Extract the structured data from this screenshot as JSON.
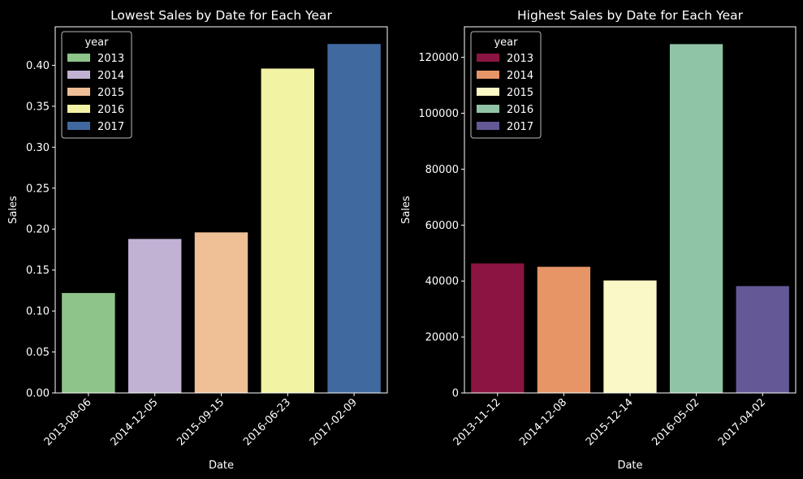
{
  "chart_data": [
    {
      "type": "bar",
      "title": "Lowest Sales by Date for Each Year",
      "xlabel": "Date",
      "ylabel": "Sales",
      "categories": [
        "2013-08-06",
        "2014-12-05",
        "2015-09-15",
        "2016-06-23",
        "2017-02-09"
      ],
      "values": [
        0.122,
        0.188,
        0.196,
        0.396,
        0.426
      ],
      "ylim": [
        0,
        0.447
      ],
      "yticks": [
        0.0,
        0.05,
        0.1,
        0.15,
        0.2,
        0.25,
        0.3,
        0.35,
        0.4
      ],
      "ytick_labels": [
        "0.00",
        "0.05",
        "0.10",
        "0.15",
        "0.20",
        "0.25",
        "0.30",
        "0.35",
        "0.40"
      ],
      "grid": false,
      "legend": {
        "title": "year",
        "placement": "top-left",
        "entries": [
          "2013",
          "2014",
          "2015",
          "2016",
          "2017"
        ],
        "colors": [
          "#8dc48a",
          "#c1b2d4",
          "#efbf96",
          "#f2f3a3",
          "#4069a0"
        ]
      }
    },
    {
      "type": "bar",
      "title": "Highest Sales by Date for Each Year",
      "xlabel": "Date",
      "ylabel": "Sales",
      "categories": [
        "2013-11-12",
        "2014-12-08",
        "2015-12-14",
        "2016-05-02",
        "2017-04-02"
      ],
      "values": [
        46300,
        45100,
        40200,
        124700,
        38200
      ],
      "ylim": [
        0,
        130900
      ],
      "yticks": [
        0,
        20000,
        40000,
        60000,
        80000,
        100000,
        120000
      ],
      "ytick_labels": [
        "0",
        "20000",
        "40000",
        "60000",
        "80000",
        "100000",
        "120000"
      ],
      "grid": false,
      "legend": {
        "title": "year",
        "placement": "top-left",
        "entries": [
          "2013",
          "2014",
          "2015",
          "2016",
          "2017"
        ],
        "colors": [
          "#8c1442",
          "#e79467",
          "#faf8c6",
          "#90c4a6",
          "#645896"
        ]
      }
    }
  ]
}
